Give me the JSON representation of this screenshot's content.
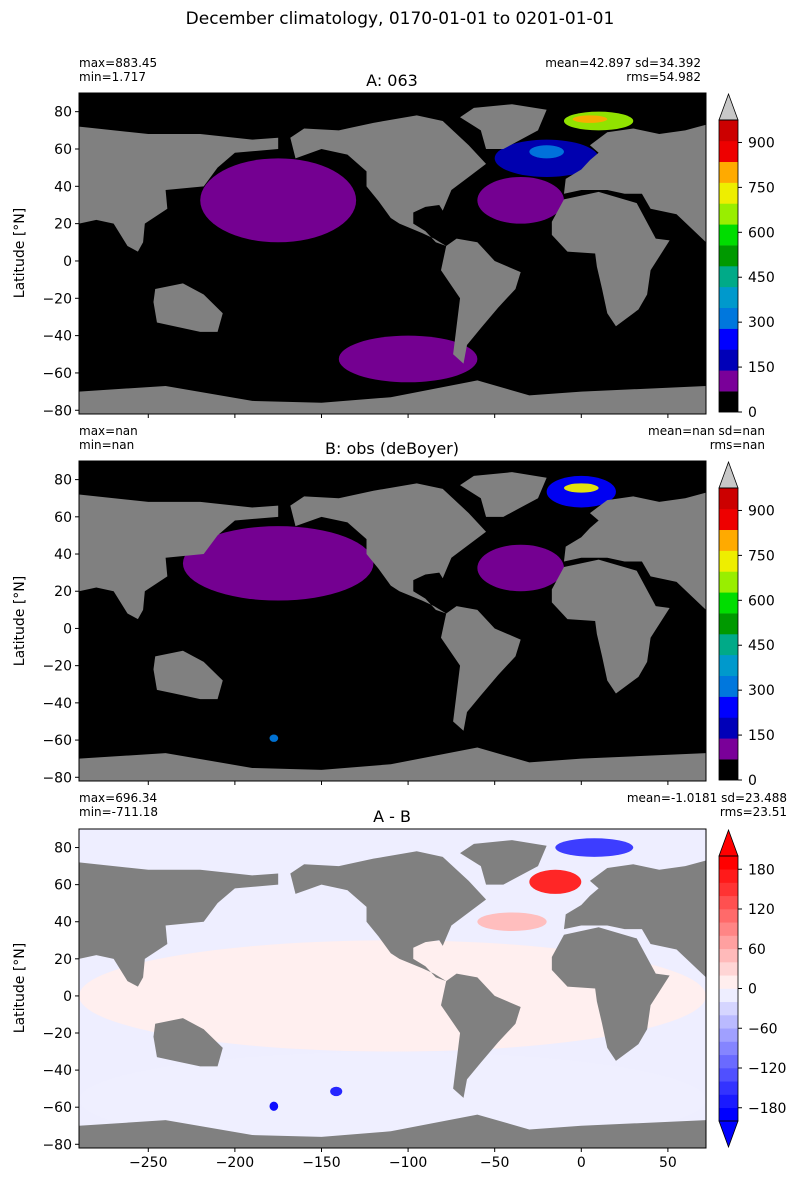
{
  "figure": {
    "title": "December climatology, 0170-01-01 to 0201-01-01",
    "land_color": "#808080",
    "ocean_zero_color": "#000000"
  },
  "chart_data": [
    {
      "type": "heatmap",
      "panel": "A",
      "title": "A: 063",
      "ylabel": "Latitude [°N]",
      "xlim": [
        -290,
        72
      ],
      "ylim": [
        -82,
        90
      ],
      "yticks": [
        80,
        60,
        40,
        20,
        0,
        -20,
        -40,
        -60,
        -80
      ],
      "stats_left": [
        "max=883.45",
        "min=1.717"
      ],
      "stats_right": [
        "mean=42.897 sd=34.392",
        "rms=54.982"
      ],
      "colorbar": {
        "levels": [
          0,
          75,
          150,
          225,
          300,
          375,
          450,
          525,
          600,
          675,
          750,
          825,
          900,
          975
        ],
        "ticks": [
          0,
          150,
          300,
          450,
          600,
          750,
          900
        ],
        "colors": [
          "#000000",
          "#7a0099",
          "#0000b8",
          "#0000ff",
          "#0077dd",
          "#0099cc",
          "#00aa88",
          "#009900",
          "#00dd00",
          "#99ee00",
          "#eeee00",
          "#ffaa00",
          "#ee0000",
          "#cc0000"
        ],
        "extend_max_color": "#c8c8c8"
      },
      "fields": [
        {
          "lon": [
            -140,
            -60
          ],
          "lat": [
            -65,
            -40
          ],
          "value": 80
        },
        {
          "lon": [
            -220,
            -130
          ],
          "lat": [
            10,
            55
          ],
          "value": 90
        },
        {
          "lon": [
            -60,
            -10
          ],
          "lat": [
            20,
            45
          ],
          "value": 100
        },
        {
          "lon": [
            -50,
            10
          ],
          "lat": [
            45,
            65
          ],
          "value": 200
        },
        {
          "lon": [
            -30,
            -10
          ],
          "lat": [
            55,
            62
          ],
          "value": 350
        },
        {
          "lon": [
            -10,
            30
          ],
          "lat": [
            70,
            80
          ],
          "value": 700
        },
        {
          "lon": [
            -5,
            15
          ],
          "lat": [
            74,
            78
          ],
          "value": 880
        }
      ]
    },
    {
      "type": "heatmap",
      "panel": "B",
      "title": "B: obs (deBoyer)",
      "ylabel": "Latitude [°N]",
      "xlim": [
        -290,
        72
      ],
      "ylim": [
        -82,
        90
      ],
      "yticks": [
        80,
        60,
        40,
        20,
        0,
        -20,
        -40,
        -60,
        -80
      ],
      "stats_left": [
        "max=nan",
        "min=nan"
      ],
      "stats_right": [
        "mean=nan sd=nan",
        "rms=nan"
      ],
      "colorbar": {
        "levels": [
          0,
          75,
          150,
          225,
          300,
          375,
          450,
          525,
          600,
          675,
          750,
          825,
          900,
          975
        ],
        "ticks": [
          0,
          150,
          300,
          450,
          600,
          750,
          900
        ],
        "colors": [
          "#000000",
          "#7a0099",
          "#0000b8",
          "#0000ff",
          "#0077dd",
          "#0099cc",
          "#00aa88",
          "#009900",
          "#00dd00",
          "#99ee00",
          "#eeee00",
          "#ffaa00",
          "#ee0000",
          "#cc0000"
        ],
        "extend_max_color": "#c8c8c8"
      },
      "fields": [
        {
          "lon": [
            -230,
            -120
          ],
          "lat": [
            15,
            55
          ],
          "value": 90
        },
        {
          "lon": [
            -60,
            -10
          ],
          "lat": [
            20,
            45
          ],
          "value": 100
        },
        {
          "lon": [
            -20,
            20
          ],
          "lat": [
            65,
            82
          ],
          "value": 250
        },
        {
          "lon": [
            -10,
            10
          ],
          "lat": [
            73,
            78
          ],
          "value": 800
        },
        {
          "lon": [
            -180,
            -175
          ],
          "lat": [
            -61,
            -57
          ],
          "value": 300
        }
      ]
    },
    {
      "type": "heatmap",
      "panel": "A - B",
      "title": "A - B",
      "ylabel": "Latitude [°N]",
      "xlim": [
        -290,
        72
      ],
      "ylim": [
        -82,
        90
      ],
      "yticks": [
        80,
        60,
        40,
        20,
        0,
        -20,
        -40,
        -60,
        -80
      ],
      "xticks": [
        -250,
        -200,
        -150,
        -100,
        -50,
        0,
        50
      ],
      "stats_left": [
        "max=696.34",
        "min=-711.18"
      ],
      "stats_right": [
        "mean=-1.0181 sd=23.488",
        "rms=23.51"
      ],
      "colorbar": {
        "levels": [
          -200,
          -180,
          -160,
          -140,
          -120,
          -100,
          -80,
          -60,
          -40,
          -20,
          0,
          20,
          40,
          60,
          80,
          100,
          120,
          140,
          160,
          180,
          200
        ],
        "ticks": [
          -180,
          -120,
          -60,
          0,
          60,
          120,
          180
        ],
        "colors": [
          "#0000ff",
          "#1a1aff",
          "#3333ff",
          "#5050ff",
          "#6a6aff",
          "#8585ff",
          "#a0a0ff",
          "#babaff",
          "#d5d5ff",
          "#eeeeff",
          "#ffeeee",
          "#ffd5d5",
          "#ffbaba",
          "#ffa0a0",
          "#ff8585",
          "#ff6a6a",
          "#ff5050",
          "#ff3333",
          "#ff1a1a",
          "#ff0000"
        ],
        "extend_min_color": "#0000ff",
        "extend_max_color": "#ff0000"
      },
      "fields": [
        {
          "lon": [
            -290,
            72
          ],
          "lat": [
            -82,
            -30
          ],
          "value": -15
        },
        {
          "lon": [
            -290,
            72
          ],
          "lat": [
            -30,
            30
          ],
          "value": 5
        },
        {
          "lon": [
            -60,
            -20
          ],
          "lat": [
            35,
            45
          ],
          "value": 50
        },
        {
          "lon": [
            -30,
            0
          ],
          "lat": [
            55,
            68
          ],
          "value": 170
        },
        {
          "lon": [
            -15,
            30
          ],
          "lat": [
            75,
            85
          ],
          "value": -160
        },
        {
          "lon": [
            -180,
            -175
          ],
          "lat": [
            -62,
            -57
          ],
          "value": -190
        },
        {
          "lon": [
            -145,
            -138
          ],
          "lat": [
            -54,
            -49
          ],
          "value": -170
        }
      ]
    }
  ]
}
